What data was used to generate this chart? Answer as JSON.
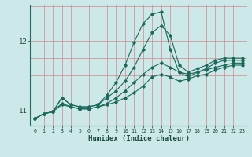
{
  "xlabel": "Humidex (Indice chaleur)",
  "bg_color": "#cce8e8",
  "grid_color": "#d08888",
  "line_color": "#1a6a5a",
  "xlim": [
    -0.5,
    23.5
  ],
  "ylim": [
    10.78,
    12.52
  ],
  "yticks": [
    11,
    12
  ],
  "xticks": [
    0,
    1,
    2,
    3,
    4,
    5,
    6,
    7,
    8,
    9,
    10,
    11,
    12,
    13,
    14,
    15,
    16,
    17,
    18,
    19,
    20,
    21,
    22,
    23
  ],
  "series": [
    [
      10.88,
      10.95,
      10.98,
      11.08,
      11.05,
      11.02,
      11.02,
      11.05,
      11.08,
      11.12,
      11.18,
      11.25,
      11.35,
      11.48,
      11.52,
      11.48,
      11.42,
      11.45,
      11.5,
      11.52,
      11.58,
      11.62,
      11.65,
      11.65
    ],
    [
      10.88,
      10.95,
      10.98,
      11.1,
      11.05,
      11.02,
      11.02,
      11.05,
      11.1,
      11.18,
      11.28,
      11.4,
      11.52,
      11.62,
      11.68,
      11.62,
      11.55,
      11.52,
      11.55,
      11.58,
      11.62,
      11.65,
      11.68,
      11.68
    ],
    [
      10.88,
      10.95,
      10.98,
      11.18,
      11.08,
      11.05,
      11.05,
      11.08,
      11.18,
      11.28,
      11.42,
      11.62,
      11.88,
      12.12,
      12.22,
      12.08,
      11.65,
      11.55,
      11.6,
      11.65,
      11.72,
      11.75,
      11.75,
      11.75
    ],
    [
      10.88,
      10.95,
      10.98,
      11.18,
      11.08,
      11.05,
      11.05,
      11.08,
      11.22,
      11.4,
      11.65,
      11.98,
      12.25,
      12.38,
      12.42,
      11.88,
      11.55,
      11.48,
      11.55,
      11.6,
      11.68,
      11.72,
      11.72,
      11.72
    ]
  ]
}
